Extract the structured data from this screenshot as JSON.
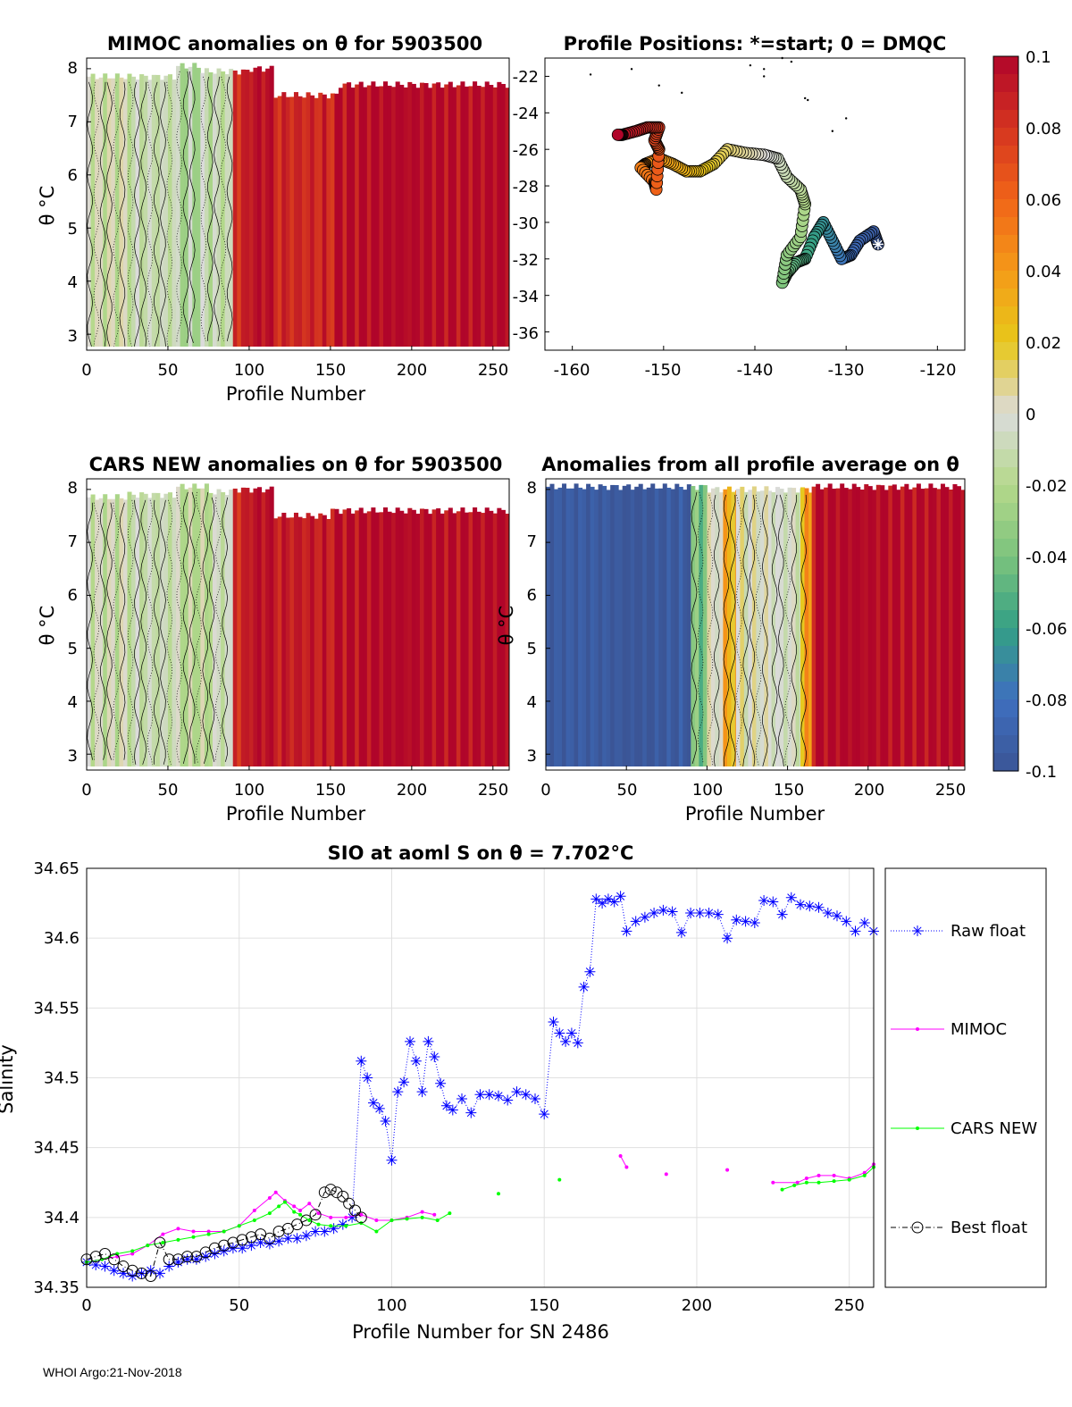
{
  "footer": "WHOI Argo:21-Nov-2018",
  "colorbar": {
    "ticks": [
      "0.1",
      "0.08",
      "0.06",
      "0.04",
      "0.02",
      "0",
      "-0.02",
      "-0.04",
      "-0.06",
      "-0.08",
      "-0.1"
    ],
    "colors": [
      "#b0052a",
      "#d43420",
      "#f06418",
      "#f59a18",
      "#e7c81a",
      "#dbdbdb",
      "#b5d98b",
      "#7cc37d",
      "#34a085",
      "#3e6fbf",
      "#3b5596"
    ]
  },
  "panels": {
    "mimoc": {
      "title": "MIMOC anomalies on θ  for 5903500",
      "ylabel": "θ °C",
      "xlabel": "Profile Number",
      "xticks": [
        "0",
        "50",
        "100",
        "150",
        "200",
        "250"
      ],
      "yticks": [
        "3",
        "4",
        "5",
        "6",
        "7",
        "8"
      ]
    },
    "positions": {
      "title": "Profile Positions: *=start; 0 = DMQC",
      "xticks": [
        "-160",
        "-150",
        "-140",
        "-130",
        "-120"
      ],
      "yticks": [
        "-22",
        "-24",
        "-26",
        "-28",
        "-30",
        "-32",
        "-34",
        "-36"
      ]
    },
    "cars": {
      "title": "CARS NEW anomalies on θ for 5903500",
      "ylabel": "θ °C",
      "xlabel": "Profile Number",
      "xticks": [
        "0",
        "50",
        "100",
        "150",
        "200",
        "250"
      ],
      "yticks": [
        "3",
        "4",
        "5",
        "6",
        "7",
        "8"
      ]
    },
    "avg": {
      "title": "Anomalies from all profile average on θ",
      "ylabel": "θ °C",
      "xlabel": "Profile Number",
      "xticks": [
        "0",
        "50",
        "100",
        "150",
        "200",
        "250"
      ],
      "yticks": [
        "3",
        "4",
        "5",
        "6",
        "7",
        "8"
      ]
    }
  },
  "chart_data": [
    {
      "id": "mimoc",
      "type": "heatmap",
      "title": "MIMOC anomalies on θ  for 5903500",
      "xlabel": "Profile Number",
      "ylabel": "θ °C",
      "xlim": [
        0,
        260
      ],
      "ylim": [
        2.7,
        8.2
      ],
      "bands": [
        {
          "x0": 0,
          "x1": 25,
          "value": -0.005,
          "top": 7.85
        },
        {
          "x0": 25,
          "x1": 55,
          "value": -0.01,
          "top": 7.85
        },
        {
          "x0": 55,
          "x1": 70,
          "value": -0.02,
          "top": 8.05
        },
        {
          "x0": 70,
          "x1": 90,
          "value": -0.012,
          "top": 7.95
        },
        {
          "x0": 90,
          "x1": 100,
          "value": 0.085,
          "top": 7.95
        },
        {
          "x0": 100,
          "x1": 115,
          "value": 0.1,
          "top": 8.0
        },
        {
          "x0": 115,
          "x1": 155,
          "value": 0.085,
          "top": 7.5
        },
        {
          "x0": 155,
          "x1": 260,
          "value": 0.1,
          "top": 7.7
        }
      ]
    },
    {
      "id": "positions",
      "type": "scatter",
      "title": "Profile Positions: *=start; 0 = DMQC",
      "xlim": [
        -163,
        -117
      ],
      "ylim": [
        -37,
        -21
      ],
      "start": {
        "lon": -126.5,
        "lat": -31.2
      },
      "track": [
        {
          "lon": -126.5,
          "lat": -31.2
        },
        {
          "lon": -127.0,
          "lat": -30.5
        },
        {
          "lon": -128.5,
          "lat": -31.0
        },
        {
          "lon": -129.5,
          "lat": -31.8
        },
        {
          "lon": -130.5,
          "lat": -32.0
        },
        {
          "lon": -131.5,
          "lat": -31.0
        },
        {
          "lon": -132.5,
          "lat": -30.0
        },
        {
          "lon": -133.5,
          "lat": -30.8
        },
        {
          "lon": -134.5,
          "lat": -32.0
        },
        {
          "lon": -135.5,
          "lat": -32.2
        },
        {
          "lon": -136.5,
          "lat": -32.8
        },
        {
          "lon": -137.0,
          "lat": -33.3
        },
        {
          "lon": -136.5,
          "lat": -31.8
        },
        {
          "lon": -135.0,
          "lat": -30.8
        },
        {
          "lon": -134.5,
          "lat": -29.0
        },
        {
          "lon": -135.0,
          "lat": -28.2
        },
        {
          "lon": -136.5,
          "lat": -27.5
        },
        {
          "lon": -137.5,
          "lat": -26.5
        },
        {
          "lon": -139.0,
          "lat": -26.3
        },
        {
          "lon": -141.0,
          "lat": -26.2
        },
        {
          "lon": -143.0,
          "lat": -26.0
        },
        {
          "lon": -144.5,
          "lat": -26.8
        },
        {
          "lon": -146.0,
          "lat": -27.2
        },
        {
          "lon": -147.5,
          "lat": -27.2
        },
        {
          "lon": -149.0,
          "lat": -26.8
        },
        {
          "lon": -150.5,
          "lat": -26.5
        },
        {
          "lon": -152.0,
          "lat": -26.8
        },
        {
          "lon": -152.5,
          "lat": -27.0
        },
        {
          "lon": -151.0,
          "lat": -27.8
        },
        {
          "lon": -150.8,
          "lat": -28.2
        },
        {
          "lon": -150.5,
          "lat": -26.0
        },
        {
          "lon": -151.0,
          "lat": -25.5
        },
        {
          "lon": -150.5,
          "lat": -24.8
        },
        {
          "lon": -151.8,
          "lat": -24.8
        },
        {
          "lon": -153.0,
          "lat": -25.0
        },
        {
          "lon": -154.5,
          "lat": -25.2
        },
        {
          "lon": -155.0,
          "lat": -25.2
        }
      ],
      "scattered": [
        {
          "lon": -158.0,
          "lat": -21.9
        },
        {
          "lon": -153.5,
          "lat": -21.6
        },
        {
          "lon": -150.5,
          "lat": -22.5
        },
        {
          "lon": -148.0,
          "lat": -22.9
        },
        {
          "lon": -140.5,
          "lat": -21.4
        },
        {
          "lon": -139.0,
          "lat": -22.0
        },
        {
          "lon": -139.0,
          "lat": -21.6
        },
        {
          "lon": -137.0,
          "lat": -21.0
        },
        {
          "lon": -136.0,
          "lat": -21.2
        },
        {
          "lon": -134.5,
          "lat": -23.2
        },
        {
          "lon": -134.2,
          "lat": -23.3
        },
        {
          "lon": -131.5,
          "lat": -25.0
        },
        {
          "lon": -130.0,
          "lat": -24.3
        }
      ]
    },
    {
      "id": "cars",
      "type": "heatmap",
      "title": "CARS NEW anomalies on θ for 5903500",
      "xlabel": "Profile Number",
      "ylabel": "θ °C",
      "xlim": [
        0,
        260
      ],
      "ylim": [
        2.7,
        8.2
      ],
      "bands": [
        {
          "x0": 0,
          "x1": 25,
          "value": -0.006,
          "top": 7.85
        },
        {
          "x0": 25,
          "x1": 55,
          "value": -0.01,
          "top": 7.9
        },
        {
          "x0": 55,
          "x1": 75,
          "value": -0.014,
          "top": 8.05
        },
        {
          "x0": 75,
          "x1": 90,
          "value": -0.008,
          "top": 7.95
        },
        {
          "x0": 90,
          "x1": 100,
          "value": 0.085,
          "top": 8.0
        },
        {
          "x0": 100,
          "x1": 115,
          "value": 0.1,
          "top": 8.0
        },
        {
          "x0": 115,
          "x1": 150,
          "value": 0.09,
          "top": 7.5
        },
        {
          "x0": 150,
          "x1": 260,
          "value": 0.1,
          "top": 7.6
        }
      ]
    },
    {
      "id": "avg",
      "type": "heatmap",
      "title": "Anomalies from all profile average on θ",
      "xlabel": "Profile Number",
      "ylabel": "θ °C",
      "xlim": [
        0,
        260
      ],
      "ylim": [
        2.7,
        8.2
      ],
      "bands": [
        {
          "x0": 0,
          "x1": 90,
          "value": -0.1,
          "top": 8.05
        },
        {
          "x0": 90,
          "x1": 100,
          "value": -0.04,
          "top": 8.05
        },
        {
          "x0": 100,
          "x1": 110,
          "value": 0.0,
          "top": 8.0
        },
        {
          "x0": 110,
          "x1": 118,
          "value": 0.03,
          "top": 8.0
        },
        {
          "x0": 118,
          "x1": 140,
          "value": 0.0,
          "top": 8.0
        },
        {
          "x0": 140,
          "x1": 158,
          "value": -0.005,
          "top": 8.0
        },
        {
          "x0": 158,
          "x1": 165,
          "value": 0.035,
          "top": 8.0
        },
        {
          "x0": 165,
          "x1": 260,
          "value": 0.1,
          "top": 8.05
        }
      ]
    },
    {
      "id": "salinity",
      "type": "line",
      "title": "SIO at aoml S on θ = 7.702°C",
      "xlabel": "Profile Number for SN 2486",
      "ylabel": "Salinity",
      "xlim": [
        0,
        258
      ],
      "ylim": [
        34.35,
        34.65
      ],
      "xticks": [
        "0",
        "50",
        "100",
        "150",
        "200",
        "250"
      ],
      "yticks": [
        "34.35",
        "34.4",
        "34.45",
        "34.5",
        "34.55",
        "34.6",
        "34.65"
      ],
      "grid": true,
      "legend": [
        "Raw float",
        "MIMOC",
        "CARS NEW",
        "Best float"
      ],
      "series": [
        {
          "name": "Raw float",
          "color": "#0000ff",
          "marker": "*",
          "x": [
            0,
            3,
            6,
            9,
            12,
            15,
            18,
            21,
            24,
            27,
            30,
            33,
            36,
            39,
            42,
            45,
            48,
            51,
            54,
            57,
            60,
            63,
            66,
            69,
            72,
            75,
            78,
            81,
            84,
            87,
            90,
            92,
            94,
            96,
            98,
            100,
            102,
            104,
            106,
            108,
            110,
            112,
            114,
            116,
            118,
            120,
            123,
            126,
            129,
            132,
            135,
            138,
            141,
            144,
            147,
            150,
            153,
            155,
            157,
            159,
            161,
            163,
            165,
            167,
            169,
            171,
            173,
            175,
            177,
            180,
            183,
            186,
            189,
            192,
            195,
            198,
            201,
            204,
            207,
            210,
            213,
            216,
            219,
            222,
            225,
            228,
            231,
            234,
            237,
            240,
            243,
            246,
            249,
            252,
            255,
            258
          ],
          "y": [
            34.368,
            34.366,
            34.365,
            34.362,
            34.36,
            34.358,
            34.36,
            34.362,
            34.36,
            34.365,
            34.368,
            34.37,
            34.37,
            34.372,
            34.374,
            34.376,
            34.378,
            34.378,
            34.38,
            34.382,
            34.381,
            34.383,
            34.385,
            34.385,
            34.387,
            34.39,
            34.39,
            34.392,
            34.395,
            34.4,
            34.512,
            34.5,
            34.482,
            34.478,
            34.469,
            34.441,
            34.49,
            34.497,
            34.526,
            34.512,
            34.49,
            34.526,
            34.515,
            34.496,
            34.48,
            34.477,
            34.485,
            34.475,
            34.488,
            34.488,
            34.487,
            34.484,
            34.49,
            34.488,
            34.485,
            34.474,
            34.54,
            34.532,
            34.526,
            34.532,
            34.525,
            34.565,
            34.576,
            34.628,
            34.625,
            34.628,
            34.626,
            34.63,
            34.605,
            34.612,
            34.615,
            34.618,
            34.62,
            34.619,
            34.604,
            34.618,
            34.618,
            34.618,
            34.617,
            34.6,
            34.613,
            34.612,
            34.611,
            34.627,
            34.626,
            34.617,
            34.629,
            34.624,
            34.623,
            34.622,
            34.618,
            34.616,
            34.612,
            34.605,
            34.611,
            34.605
          ]
        },
        {
          "name": "MIMOC",
          "color": "#ff00ff",
          "marker": ".",
          "x": [
            0,
            5,
            10,
            15,
            20,
            25,
            30,
            35,
            40,
            45,
            50,
            55,
            60,
            62,
            65,
            68,
            70,
            73,
            76,
            80,
            85,
            90,
            95,
            100,
            105,
            110,
            114,
            175,
            177,
            190,
            210,
            225,
            233,
            236,
            240,
            245,
            250,
            255,
            258
          ],
          "y": [
            34.368,
            34.37,
            34.372,
            34.374,
            34.38,
            34.388,
            34.392,
            34.39,
            34.39,
            34.39,
            34.394,
            34.405,
            34.414,
            34.418,
            34.412,
            34.408,
            34.405,
            34.41,
            34.403,
            34.4,
            34.4,
            34.402,
            34.398,
            34.398,
            34.4,
            34.404,
            34.402,
            34.444,
            34.436,
            34.431,
            34.434,
            34.425,
            34.425,
            34.428,
            34.43,
            34.43,
            34.428,
            34.432,
            34.438
          ]
        },
        {
          "name": "CARS NEW",
          "color": "#00ff00",
          "marker": ".",
          "x": [
            0,
            5,
            10,
            15,
            20,
            25,
            30,
            35,
            40,
            45,
            50,
            55,
            60,
            63,
            65,
            68,
            70,
            73,
            76,
            80,
            85,
            90,
            95,
            100,
            105,
            110,
            115,
            119,
            135,
            155,
            228,
            232,
            236,
            240,
            245,
            250,
            255,
            258
          ],
          "y": [
            34.368,
            34.37,
            34.374,
            34.376,
            34.38,
            34.382,
            34.384,
            34.386,
            34.388,
            34.39,
            34.394,
            34.398,
            34.403,
            34.408,
            34.411,
            34.404,
            34.402,
            34.398,
            34.395,
            34.394,
            34.394,
            34.396,
            34.39,
            34.398,
            34.399,
            34.4,
            34.398,
            34.403,
            34.417,
            34.427,
            34.42,
            34.423,
            34.425,
            34.425,
            34.426,
            34.427,
            34.43,
            34.436
          ]
        },
        {
          "name": "Best float",
          "color": "#000000",
          "marker": "o",
          "x": [
            0,
            3,
            6,
            9,
            12,
            15,
            18,
            21,
            24,
            27,
            30,
            33,
            36,
            39,
            42,
            45,
            48,
            51,
            54,
            57,
            60,
            63,
            66,
            69,
            72,
            75,
            78,
            80,
            82,
            84,
            86,
            88,
            90
          ],
          "y": [
            34.37,
            34.372,
            34.374,
            34.37,
            34.365,
            34.362,
            34.36,
            34.358,
            34.382,
            34.37,
            34.37,
            34.372,
            34.372,
            34.375,
            34.378,
            34.38,
            34.382,
            34.384,
            34.386,
            34.388,
            34.385,
            34.39,
            34.392,
            34.395,
            34.398,
            34.402,
            34.418,
            34.42,
            34.418,
            34.415,
            34.41,
            34.405,
            34.4
          ]
        }
      ]
    }
  ]
}
